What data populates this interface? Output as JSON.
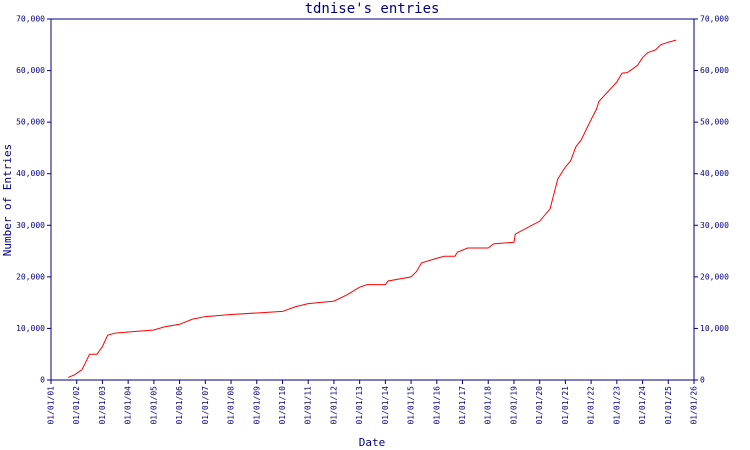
{
  "chart_data": {
    "type": "line",
    "title": "tdnise's entries",
    "x_label": "Date",
    "y_label": "Number of Entries",
    "axis_color": "#000080",
    "series": [
      {
        "name": "entries",
        "color": "#ff0000",
        "x": [
          "09/01/01",
          "12/01/01",
          "03/15/02",
          "07/01/02",
          "10/15/02",
          "01/01/03",
          "03/15/03",
          "07/01/03",
          "01/01/04",
          "01/01/05",
          "05/27/05",
          "01/01/06",
          "07/01/06",
          "01/01/07",
          "01/01/08",
          "01/01/09",
          "01/01/10",
          "07/01/10",
          "01/01/11",
          "01/01/12",
          "07/01/12",
          "01/01/13",
          "04/15/13",
          "01/01/14",
          "02/10/14",
          "01/01/15",
          "03/15/15",
          "05/27/15",
          "01/01/16",
          "04/15/16",
          "09/15/16",
          "10/20/16",
          "03/15/17",
          "01/01/18",
          "03/15/18",
          "01/01/19",
          "01/20/19",
          "01/01/20",
          "05/27/20",
          "09/15/20",
          "01/01/21",
          "03/15/21",
          "05/27/21",
          "08/10/21",
          "01/01/22",
          "03/15/22",
          "04/20/22",
          "01/01/23",
          "03/15/23",
          "05/27/23",
          "10/20/23",
          "01/01/24",
          "03/15/24",
          "07/01/24",
          "09/15/24",
          "01/01/25",
          "04/20/25"
        ],
        "values": [
          500,
          1000,
          2000,
          5000,
          5000,
          6500,
          8700,
          9100,
          9300,
          9700,
          10300,
          10800,
          11800,
          12300,
          12700,
          13000,
          13300,
          14200,
          14800,
          15300,
          16500,
          18000,
          18500,
          18500,
          19200,
          20000,
          21000,
          22700,
          23600,
          24000,
          24000,
          24800,
          25600,
          25600,
          26400,
          26700,
          28300,
          30800,
          33200,
          39000,
          41300,
          42500,
          45200,
          46500,
          50500,
          52500,
          54000,
          57800,
          59500,
          59600,
          61000,
          62500,
          63500,
          64000,
          65000,
          65500,
          65900
        ]
      }
    ],
    "xlim": [
      "01/01/01",
      "01/01/26"
    ],
    "xticks": [
      "01/01/01",
      "01/01/02",
      "01/01/03",
      "01/01/04",
      "01/01/05",
      "01/01/06",
      "01/01/07",
      "01/01/08",
      "01/01/09",
      "01/01/10",
      "01/01/11",
      "01/01/12",
      "01/01/13",
      "01/01/14",
      "01/01/15",
      "01/01/16",
      "01/01/17",
      "01/01/18",
      "01/01/19",
      "01/01/20",
      "01/01/21",
      "01/01/22",
      "01/01/23",
      "01/01/24",
      "01/01/25",
      "01/01/26"
    ],
    "ylim": [
      0,
      70000
    ],
    "yticks": [
      0,
      {
        "value": 10000,
        "label": "10,000"
      },
      {
        "value": 20000,
        "label": "20,000"
      },
      {
        "value": 30000,
        "label": "30,000"
      },
      {
        "value": 40000,
        "label": "40,000"
      },
      {
        "value": 50000,
        "label": "50,000"
      },
      {
        "value": 60000,
        "label": "60,000"
      },
      {
        "value": 70000,
        "label": "70,000"
      }
    ]
  }
}
